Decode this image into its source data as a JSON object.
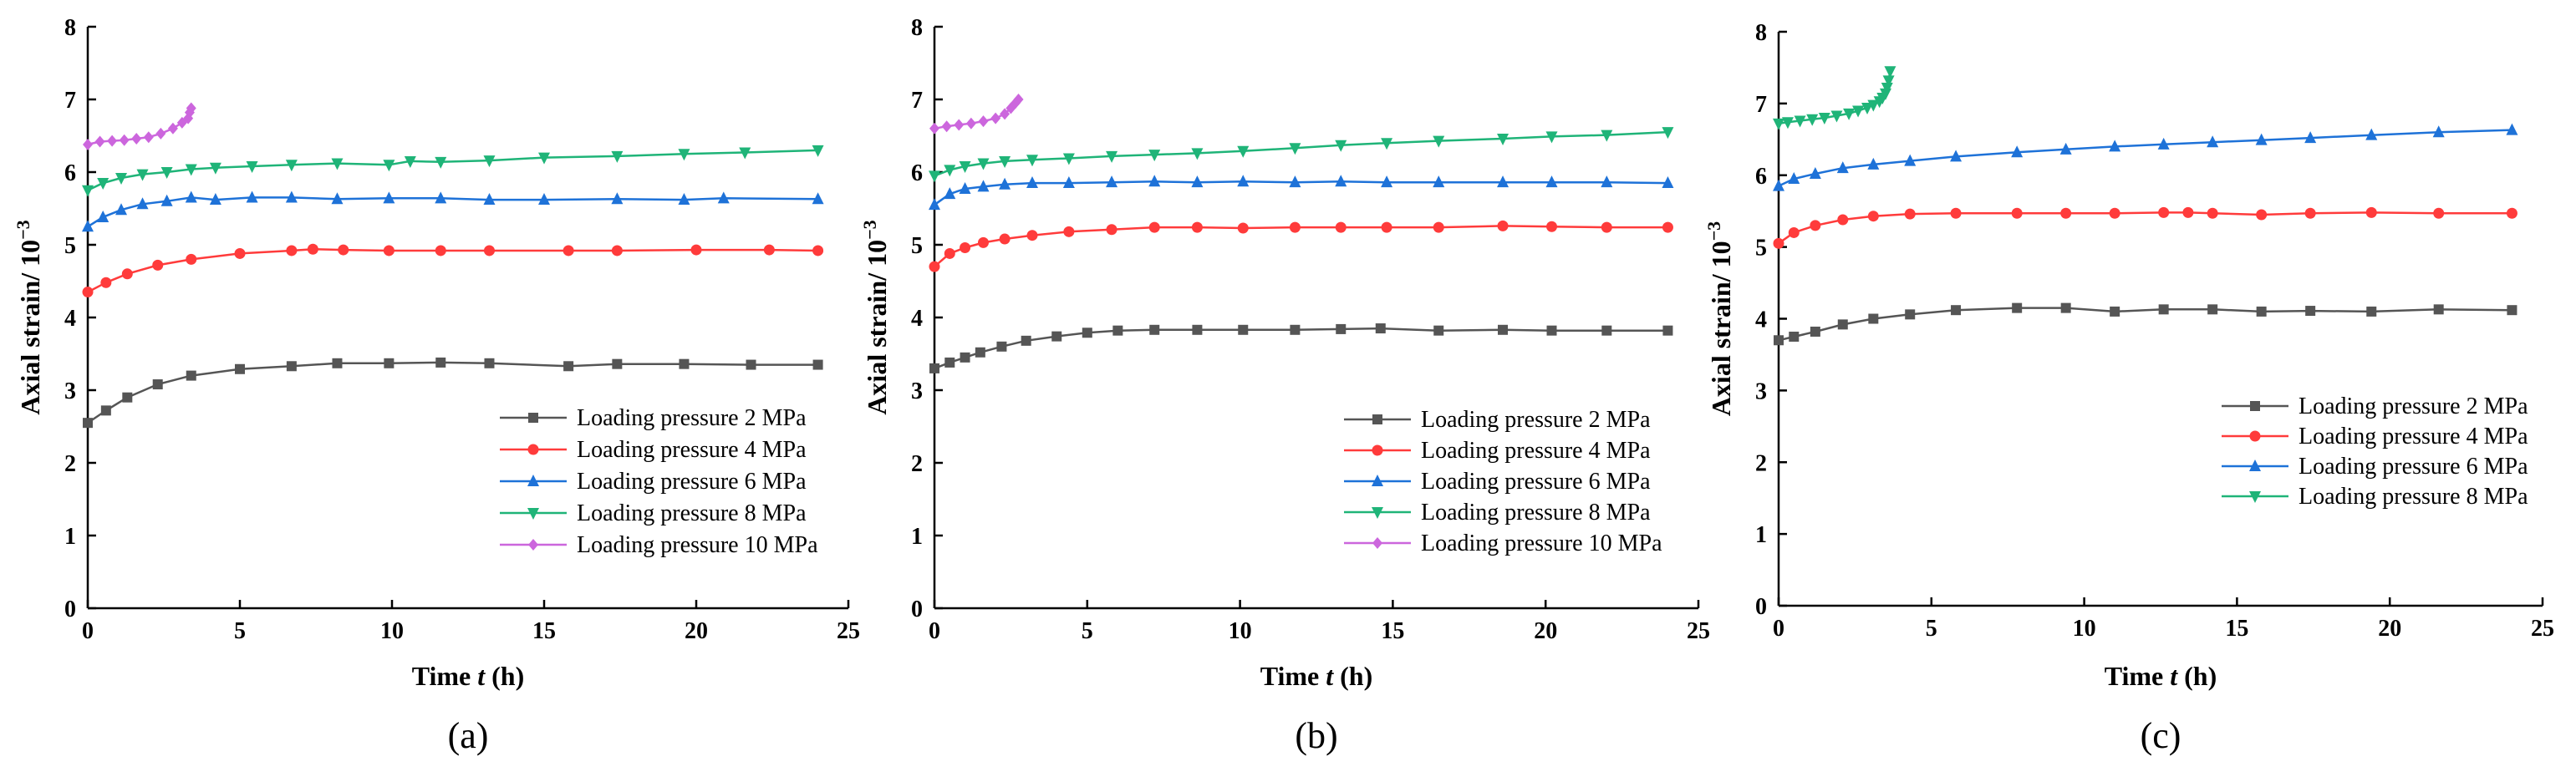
{
  "chart_data": [
    {
      "type": "line",
      "panel_label": "(a)",
      "xlabel_prefix": "Time ",
      "xlabel_var": "t",
      "xlabel_suffix": " (h)",
      "ylabel": "Axial strain/ 10",
      "ylabel_exp": "−3",
      "xlim": [
        0,
        25
      ],
      "ylim": [
        0,
        8
      ],
      "xticks": [
        0,
        5,
        10,
        15,
        20,
        25
      ],
      "yticks": [
        0,
        1,
        2,
        3,
        4,
        5,
        6,
        7,
        8
      ],
      "grid": false,
      "legend_position": "bottom-right",
      "series": [
        {
          "name": "Loading pressure 2 MPa",
          "color": "#555555",
          "marker": "square",
          "x": [
            0,
            0.6,
            1.3,
            2.3,
            3.4,
            5,
            6.7,
            8.2,
            9.9,
            11.6,
            13.2,
            15.8,
            17.4,
            19.6,
            21.8,
            24
          ],
          "y": [
            2.55,
            2.72,
            2.9,
            3.08,
            3.2,
            3.29,
            3.33,
            3.37,
            3.37,
            3.38,
            3.37,
            3.33,
            3.36,
            3.36,
            3.35,
            3.35
          ]
        },
        {
          "name": "Loading pressure 4 MPa",
          "color": "#ff3b3b",
          "marker": "circle",
          "x": [
            0,
            0.6,
            1.3,
            2.3,
            3.4,
            5,
            6.7,
            7.4,
            8.4,
            9.9,
            11.6,
            13.2,
            15.8,
            17.4,
            20,
            22.4,
            24
          ],
          "y": [
            4.35,
            4.48,
            4.6,
            4.72,
            4.8,
            4.88,
            4.92,
            4.94,
            4.93,
            4.92,
            4.92,
            4.92,
            4.92,
            4.92,
            4.93,
            4.93,
            4.92
          ]
        },
        {
          "name": "Loading pressure 6 MPa",
          "color": "#1e72d8",
          "marker": "triangle-up",
          "x": [
            0,
            0.5,
            1.1,
            1.8,
            2.6,
            3.4,
            4.2,
            5.4,
            6.7,
            8.2,
            9.9,
            11.6,
            13.2,
            15,
            17.4,
            19.6,
            20.9,
            24
          ],
          "y": [
            5.25,
            5.38,
            5.48,
            5.56,
            5.6,
            5.65,
            5.62,
            5.65,
            5.65,
            5.63,
            5.64,
            5.64,
            5.62,
            5.62,
            5.63,
            5.62,
            5.64,
            5.63
          ]
        },
        {
          "name": "Loading pressure 8 MPa",
          "color": "#1fb478",
          "marker": "triangle-down",
          "x": [
            0,
            0.5,
            1.1,
            1.8,
            2.6,
            3.4,
            4.2,
            5.4,
            6.7,
            8.2,
            9.9,
            10.6,
            11.6,
            13.2,
            15,
            17.4,
            19.6,
            21.6,
            24
          ],
          "y": [
            5.75,
            5.85,
            5.92,
            5.97,
            6.0,
            6.04,
            6.06,
            6.08,
            6.1,
            6.12,
            6.1,
            6.15,
            6.14,
            6.16,
            6.2,
            6.22,
            6.25,
            6.27,
            6.3
          ]
        },
        {
          "name": "Loading pressure 10 MPa",
          "color": "#cc66dd",
          "marker": "diamond",
          "x": [
            0,
            0.4,
            0.8,
            1.2,
            1.6,
            2.0,
            2.4,
            2.8,
            3.1,
            3.3,
            3.35,
            3.4
          ],
          "y": [
            6.38,
            6.42,
            6.43,
            6.44,
            6.46,
            6.48,
            6.53,
            6.6,
            6.68,
            6.74,
            6.82,
            6.88
          ]
        }
      ]
    },
    {
      "type": "line",
      "panel_label": "(b)",
      "xlabel_prefix": "Time ",
      "xlabel_var": "t",
      "xlabel_suffix": " (h)",
      "ylabel": "Axial strain/ 10",
      "ylabel_exp": "−3",
      "xlim": [
        0,
        25
      ],
      "ylim": [
        0,
        8
      ],
      "xticks": [
        0,
        5,
        10,
        15,
        20,
        25
      ],
      "yticks": [
        0,
        1,
        2,
        3,
        4,
        5,
        6,
        7,
        8
      ],
      "grid": false,
      "legend_position": "bottom-right",
      "series": [
        {
          "name": "Loading pressure 2 MPa",
          "color": "#555555",
          "marker": "square",
          "x": [
            0,
            0.5,
            1.0,
            1.5,
            2.2,
            3.0,
            4.0,
            5.0,
            6.0,
            7.2,
            8.6,
            10.1,
            11.8,
            13.3,
            14.6,
            16.5,
            18.6,
            20.2,
            22.0,
            24
          ],
          "y": [
            3.3,
            3.38,
            3.45,
            3.52,
            3.6,
            3.68,
            3.74,
            3.79,
            3.82,
            3.83,
            3.83,
            3.83,
            3.83,
            3.84,
            3.85,
            3.82,
            3.83,
            3.82,
            3.82,
            3.82
          ]
        },
        {
          "name": "Loading pressure 4 MPa",
          "color": "#ff3b3b",
          "marker": "circle",
          "x": [
            0,
            0.5,
            1.0,
            1.6,
            2.3,
            3.2,
            4.4,
            5.8,
            7.2,
            8.6,
            10.1,
            11.8,
            13.3,
            14.8,
            16.5,
            18.6,
            20.2,
            22.0,
            24
          ],
          "y": [
            4.7,
            4.88,
            4.96,
            5.03,
            5.08,
            5.13,
            5.18,
            5.21,
            5.24,
            5.24,
            5.23,
            5.24,
            5.24,
            5.24,
            5.24,
            5.26,
            5.25,
            5.24,
            5.24
          ]
        },
        {
          "name": "Loading pressure 6 MPa",
          "color": "#1e72d8",
          "marker": "triangle-up",
          "x": [
            0,
            0.5,
            1.0,
            1.6,
            2.3,
            3.2,
            4.4,
            5.8,
            7.2,
            8.6,
            10.1,
            11.8,
            13.3,
            14.8,
            16.5,
            18.6,
            20.2,
            22.0,
            24
          ],
          "y": [
            5.55,
            5.7,
            5.77,
            5.8,
            5.83,
            5.85,
            5.85,
            5.86,
            5.87,
            5.86,
            5.87,
            5.86,
            5.87,
            5.86,
            5.86,
            5.86,
            5.86,
            5.86,
            5.85
          ]
        },
        {
          "name": "Loading pressure 8 MPa",
          "color": "#1fb478",
          "marker": "triangle-down",
          "x": [
            0,
            0.5,
            1.0,
            1.6,
            2.3,
            3.2,
            4.4,
            5.8,
            7.2,
            8.6,
            10.1,
            11.8,
            13.3,
            14.8,
            16.5,
            18.6,
            20.2,
            22.0,
            24
          ],
          "y": [
            5.95,
            6.03,
            6.08,
            6.12,
            6.15,
            6.17,
            6.19,
            6.22,
            6.24,
            6.26,
            6.29,
            6.33,
            6.37,
            6.4,
            6.43,
            6.46,
            6.49,
            6.51,
            6.55
          ]
        },
        {
          "name": "Loading pressure 10 MPa",
          "color": "#cc66dd",
          "marker": "diamond",
          "x": [
            0,
            0.4,
            0.8,
            1.2,
            1.6,
            2.0,
            2.3,
            2.5,
            2.65,
            2.75
          ],
          "y": [
            6.6,
            6.63,
            6.65,
            6.67,
            6.7,
            6.74,
            6.8,
            6.88,
            6.95,
            7.0
          ]
        }
      ]
    },
    {
      "type": "line",
      "panel_label": "(c)",
      "xlabel_prefix": "Time ",
      "xlabel_var": "t",
      "xlabel_suffix": " (h)",
      "ylabel": "Axial strain/ 10",
      "ylabel_exp": "−3",
      "xlim": [
        0,
        25
      ],
      "ylim": [
        0,
        8
      ],
      "xticks": [
        0,
        5,
        10,
        15,
        20,
        25
      ],
      "yticks": [
        0,
        1,
        2,
        3,
        4,
        5,
        6,
        7,
        8
      ],
      "grid": false,
      "legend_position": "right",
      "series": [
        {
          "name": "Loading pressure 2 MPa",
          "color": "#555555",
          "marker": "square",
          "x": [
            0,
            0.5,
            1.2,
            2.1,
            3.1,
            4.3,
            5.8,
            7.8,
            9.4,
            11.0,
            12.6,
            14.2,
            15.8,
            17.4,
            19.4,
            21.6,
            24
          ],
          "y": [
            3.7,
            3.75,
            3.82,
            3.92,
            4.0,
            4.06,
            4.12,
            4.15,
            4.15,
            4.1,
            4.13,
            4.13,
            4.1,
            4.11,
            4.1,
            4.13,
            4.12
          ]
        },
        {
          "name": "Loading pressure 4 MPa",
          "color": "#ff3b3b",
          "marker": "circle",
          "x": [
            0,
            0.5,
            1.2,
            2.1,
            3.1,
            4.3,
            5.8,
            7.8,
            9.4,
            11.0,
            12.6,
            13.4,
            14.2,
            15.8,
            17.4,
            19.4,
            21.6,
            24
          ],
          "y": [
            5.05,
            5.2,
            5.3,
            5.38,
            5.43,
            5.46,
            5.47,
            5.47,
            5.47,
            5.47,
            5.48,
            5.48,
            5.47,
            5.45,
            5.47,
            5.48,
            5.47,
            5.47
          ]
        },
        {
          "name": "Loading pressure 6 MPa",
          "color": "#1e72d8",
          "marker": "triangle-up",
          "x": [
            0,
            0.5,
            1.2,
            2.1,
            3.1,
            4.3,
            5.8,
            7.8,
            9.4,
            11.0,
            12.6,
            14.2,
            15.8,
            17.4,
            19.4,
            21.6,
            24
          ],
          "y": [
            5.85,
            5.95,
            6.02,
            6.1,
            6.15,
            6.2,
            6.26,
            6.32,
            6.36,
            6.4,
            6.43,
            6.46,
            6.49,
            6.52,
            6.56,
            6.6,
            6.63
          ]
        },
        {
          "name": "Loading pressure 8 MPa",
          "color": "#1fb478",
          "marker": "triangle-down",
          "x": [
            0,
            0.3,
            0.7,
            1.1,
            1.5,
            1.9,
            2.3,
            2.6,
            2.9,
            3.1,
            3.3,
            3.4,
            3.5,
            3.55,
            3.6,
            3.65
          ],
          "y": [
            6.72,
            6.74,
            6.76,
            6.78,
            6.8,
            6.83,
            6.86,
            6.9,
            6.94,
            6.98,
            7.03,
            7.08,
            7.14,
            7.22,
            7.32,
            7.45
          ]
        }
      ]
    }
  ]
}
